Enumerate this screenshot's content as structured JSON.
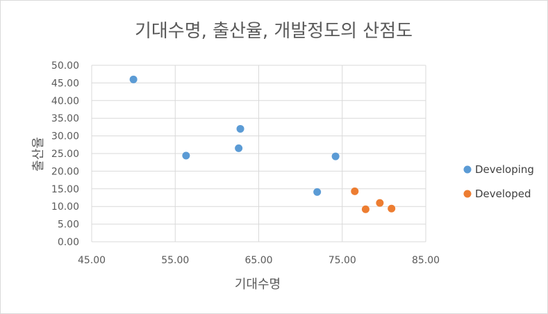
{
  "chart_data": {
    "type": "scatter",
    "title": "기대수명, 출산율, 개발정도의 산점도",
    "xlabel": "기대수명",
    "ylabel": "출산율",
    "xlim": [
      45,
      85
    ],
    "ylim": [
      0,
      50
    ],
    "x_ticks": [
      "45.00",
      "55.00",
      "65.00",
      "75.00",
      "85.00"
    ],
    "y_ticks": [
      "0.00",
      "5.00",
      "10.00",
      "15.00",
      "20.00",
      "25.00",
      "30.00",
      "35.00",
      "40.00",
      "45.00",
      "50.00"
    ],
    "grid": true,
    "legend_position": "right",
    "series": [
      {
        "name": "Developing",
        "color": "#5B9BD5",
        "points": [
          {
            "x": 50.0,
            "y": 46.0
          },
          {
            "x": 56.3,
            "y": 24.4
          },
          {
            "x": 62.6,
            "y": 26.5
          },
          {
            "x": 62.8,
            "y": 32.0
          },
          {
            "x": 72.0,
            "y": 14.1
          },
          {
            "x": 74.2,
            "y": 24.2
          }
        ]
      },
      {
        "name": "Developed",
        "color": "#ED7D31",
        "points": [
          {
            "x": 76.5,
            "y": 14.3
          },
          {
            "x": 77.8,
            "y": 9.2
          },
          {
            "x": 79.5,
            "y": 11.0
          },
          {
            "x": 80.9,
            "y": 9.4
          }
        ]
      }
    ]
  }
}
